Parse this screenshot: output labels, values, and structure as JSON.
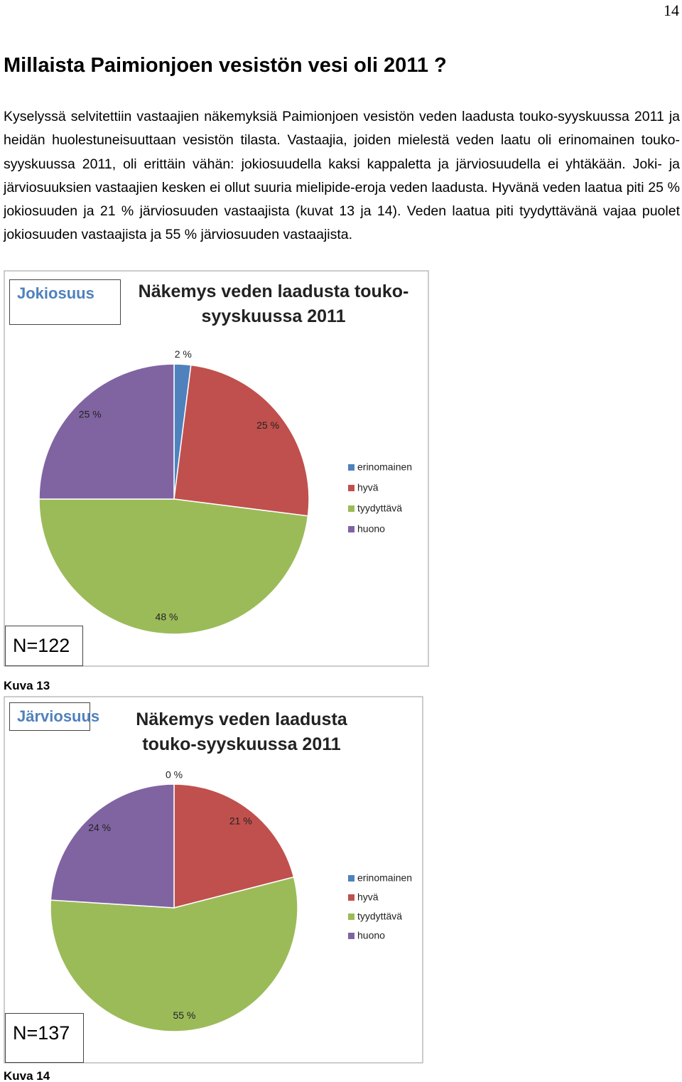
{
  "page_number": "14",
  "title": "Millaista Paimionjoen vesistön vesi oli 2011 ?",
  "paragraph": "Kyselyssä selvitettiin vastaajien näkemyksiä Paimionjoen vesistön veden laadusta touko-syyskuussa 2011 ja heidän huolestuneisuuttaan vesistön tilasta. Vastaajia, joiden mielestä veden laatu oli erinomainen touko-syyskuussa 2011, oli erittäin vähän: jokiosuudella kaksi kappaletta ja järviosuudella ei yhtäkään. Joki- ja järviosuuksien vastaajien kesken ei ollut suuria mielipide-eroja veden laadusta. Hyvänä veden laatua piti 25 % jokiosuuden ja 21 % järviosuuden vastaajista (kuvat 13 ja 14). Veden laatua piti tyydyttävänä vajaa puolet jokiosuuden vastaajista ja 55 % järviosuuden vastaajista.",
  "chart_data": [
    {
      "type": "pie",
      "box_label": "Jokiosuus",
      "title": "Näkemys veden  laadusta touko-syyskuussa 2011",
      "categories": [
        "erinomainen",
        "hyvä",
        "tyydyttävä",
        "huono"
      ],
      "values": [
        2,
        25,
        48,
        25
      ],
      "value_labels": [
        "2 %",
        "25 %",
        "48 %",
        "25 %"
      ],
      "colors": [
        "#4f81bd",
        "#c0504d",
        "#9bbb59",
        "#8064a2"
      ],
      "n_label": "N=122",
      "caption": "Kuva 13"
    },
    {
      "type": "pie",
      "box_label": "Järviosuus",
      "title": "Näkemys veden laadusta touko-syyskuussa 2011",
      "categories": [
        "erinomainen",
        "hyvä",
        "tyydyttävä",
        "huono"
      ],
      "values": [
        0,
        21,
        55,
        24
      ],
      "value_labels": [
        "0 %",
        "21 %",
        "55 %",
        "24 %"
      ],
      "colors": [
        "#4f81bd",
        "#c0504d",
        "#9bbb59",
        "#8064a2"
      ],
      "n_label": "N=137",
      "caption": "Kuva 14"
    }
  ]
}
